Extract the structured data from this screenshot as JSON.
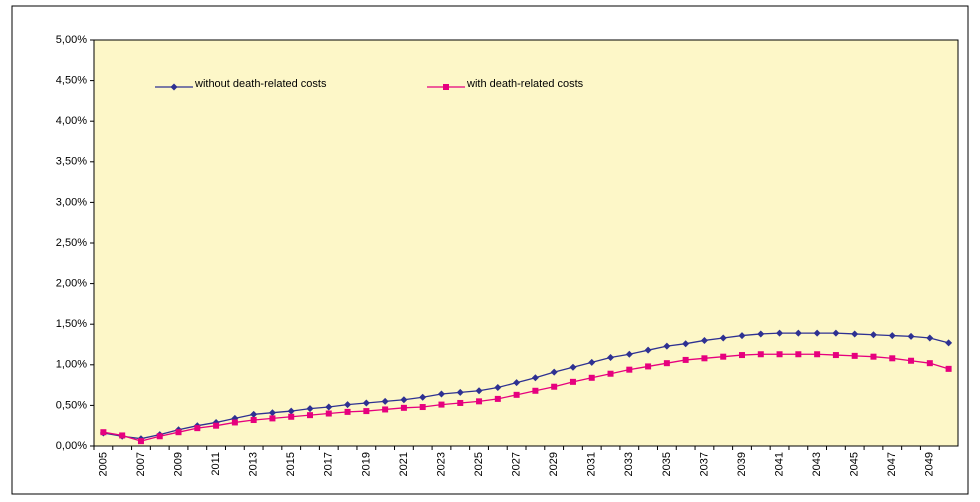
{
  "chart_data": {
    "type": "line",
    "categories": [
      "2005",
      null,
      "2007",
      null,
      "2009",
      null,
      "2011",
      null,
      "2013",
      null,
      "2015",
      null,
      "2017",
      null,
      "2019",
      null,
      "2021",
      null,
      "2023",
      null,
      "2025",
      null,
      "2027",
      null,
      "2029",
      null,
      "2031",
      null,
      "2033",
      null,
      "2035",
      null,
      "2037",
      null,
      "2039",
      null,
      "2041",
      null,
      "2043",
      null,
      "2045",
      null,
      "2047",
      null,
      "2049",
      null
    ],
    "series": [
      {
        "name": "without death-related costs",
        "color": "#2e3192",
        "marker": "diamond",
        "values": [
          0.16,
          0.12,
          0.09,
          0.14,
          0.2,
          0.25,
          0.29,
          0.34,
          0.39,
          0.41,
          0.43,
          0.46,
          0.48,
          0.51,
          0.53,
          0.55,
          0.57,
          0.6,
          0.64,
          0.66,
          0.68,
          0.72,
          0.78,
          0.84,
          0.91,
          0.97,
          1.03,
          1.09,
          1.13,
          1.18,
          1.23,
          1.26,
          1.3,
          1.33,
          1.36,
          1.38,
          1.39,
          1.39,
          1.39,
          1.39,
          1.38,
          1.37,
          1.36,
          1.35,
          1.33,
          1.27
        ]
      },
      {
        "name": "with death-related costs",
        "color": "#e6007e",
        "marker": "square",
        "values": [
          0.17,
          0.13,
          0.06,
          0.12,
          0.17,
          0.22,
          0.25,
          0.29,
          0.32,
          0.34,
          0.36,
          0.38,
          0.4,
          0.42,
          0.43,
          0.45,
          0.47,
          0.48,
          0.51,
          0.53,
          0.55,
          0.58,
          0.63,
          0.68,
          0.73,
          0.79,
          0.84,
          0.89,
          0.94,
          0.98,
          1.02,
          1.06,
          1.08,
          1.1,
          1.12,
          1.13,
          1.13,
          1.13,
          1.13,
          1.12,
          1.11,
          1.1,
          1.08,
          1.05,
          1.02,
          0.95
        ]
      }
    ],
    "ylim": [
      0,
      5
    ],
    "yticks": [
      {
        "value": 0,
        "label": "0,00%"
      },
      {
        "value": 0.5,
        "label": "0,50%"
      },
      {
        "value": 1,
        "label": "1,00%"
      },
      {
        "value": 1.5,
        "label": "1,50%"
      },
      {
        "value": 2,
        "label": "2,00%"
      },
      {
        "value": 2.5,
        "label": "2,50%"
      },
      {
        "value": 3,
        "label": "3,00%"
      },
      {
        "value": 3.5,
        "label": "3,50%"
      },
      {
        "value": 4,
        "label": "4,00%"
      },
      {
        "value": 4.5,
        "label": "4,50%"
      },
      {
        "value": 5,
        "label": "5,00%"
      }
    ],
    "background": "#fdf7c8"
  }
}
